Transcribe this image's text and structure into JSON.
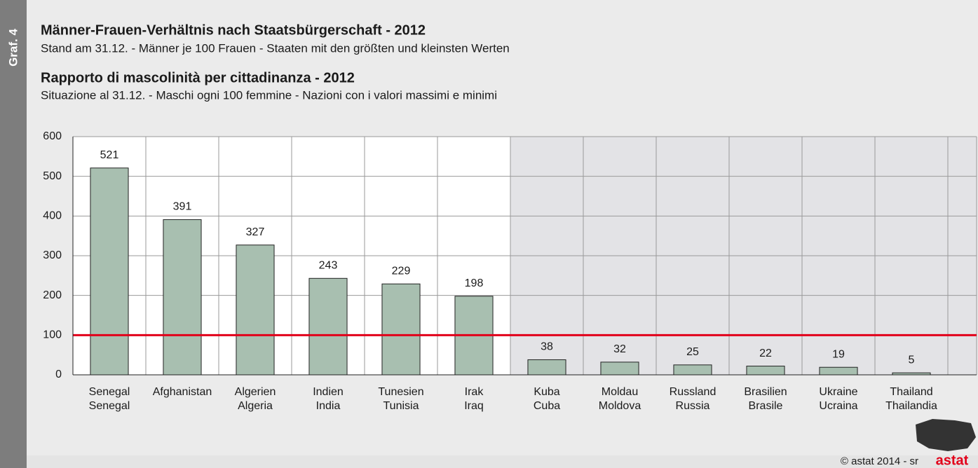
{
  "side_label": "Graf. 4",
  "footer": "© astat 2014 - sr",
  "logo": "astat",
  "chart_data": {
    "type": "bar",
    "title": "Männer-Frauen-Verhältnis nach Staatsbürgerschaft - 2012",
    "subtitle": "Stand am 31.12. - Männer je 100 Frauen - Staaten mit den größten und kleinsten Werten",
    "title2": "Rapporto di mascolinità per cittadinanza - 2012",
    "subtitle2": "Situazione al 31.12. - Maschi ogni 100 femmine - Nazioni con i valori massimi e minimi",
    "categories": [
      [
        "Senegal",
        "Senegal"
      ],
      [
        "Afghanistan"
      ],
      [
        "Algerien",
        "Algeria"
      ],
      [
        "Indien",
        "India"
      ],
      [
        "Tunesien",
        "Tunisia"
      ],
      [
        "Irak",
        "Iraq"
      ],
      [
        "Kuba",
        "Cuba"
      ],
      [
        "Moldau",
        "Moldova"
      ],
      [
        "Russland",
        "Russia"
      ],
      [
        "Brasilien",
        "Brasile"
      ],
      [
        "Ukraine",
        "Ucraina"
      ],
      [
        "Thailand",
        "Thailandia"
      ]
    ],
    "values": [
      521,
      391,
      327,
      243,
      229,
      198,
      38,
      32,
      25,
      22,
      19,
      5
    ],
    "color": "#a8bfb0",
    "ylim": [
      0,
      600
    ],
    "yticks": [
      0,
      100,
      200,
      300,
      400,
      500,
      600
    ],
    "grid": true,
    "reference_line": {
      "value": 100,
      "color": "#e2001a"
    },
    "shaded_from_category": 6
  }
}
